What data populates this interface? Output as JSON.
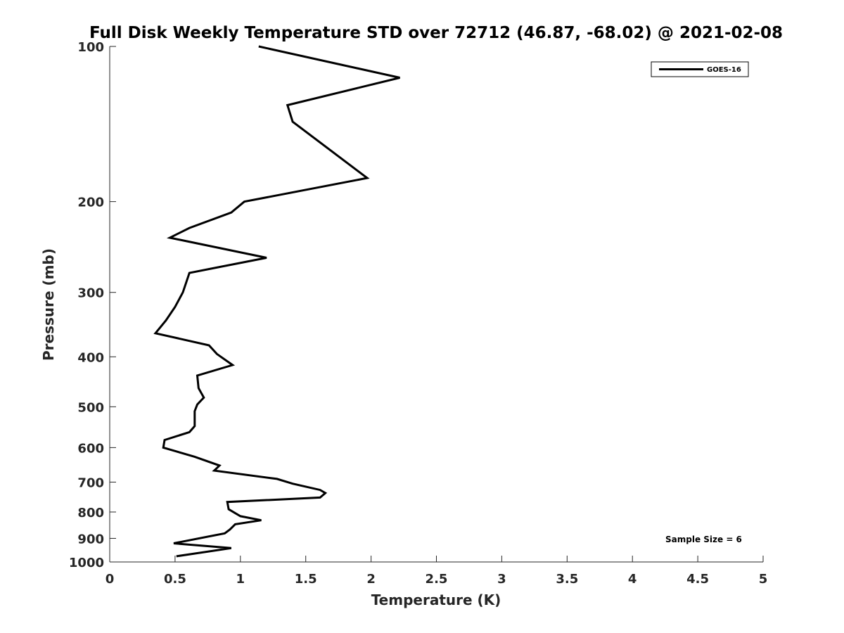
{
  "chart_data": {
    "type": "line",
    "title": "Full Disk Weekly Temperature STD over 72712 (46.87, -68.02) @ 2021-02-08",
    "xlabel": "Temperature (K)",
    "ylabel": "Pressure (mb)",
    "xlim": [
      0,
      5
    ],
    "ylim": [
      100,
      1000
    ],
    "y_scale": "log",
    "y_reversed": true,
    "x_ticks": [
      0,
      0.5,
      1,
      1.5,
      2,
      2.5,
      3,
      3.5,
      4,
      4.5,
      5
    ],
    "x_tick_labels": [
      "0",
      "0.5",
      "1",
      "1.5",
      "2",
      "2.5",
      "3",
      "3.5",
      "4",
      "4.5",
      "5"
    ],
    "y_ticks": [
      100,
      200,
      300,
      400,
      500,
      600,
      700,
      800,
      900,
      1000
    ],
    "y_tick_labels": [
      "100",
      "200",
      "300",
      "400",
      "500",
      "600",
      "700",
      "800",
      "900",
      "1000"
    ],
    "grid": false,
    "legend_position": "top-right",
    "series": [
      {
        "name": "GOES-16",
        "color": "#000000",
        "x": [
          1.14,
          2.22,
          1.36,
          1.4,
          1.97,
          1.03,
          0.93,
          0.61,
          0.46,
          1.2,
          0.61,
          0.56,
          0.5,
          0.43,
          0.35,
          0.76,
          0.82,
          0.94,
          0.67,
          0.68,
          0.72,
          0.67,
          0.65,
          0.65,
          0.65,
          0.61,
          0.42,
          0.41,
          0.65,
          0.84,
          0.8,
          1.28,
          1.4,
          1.61,
          1.65,
          1.61,
          0.9,
          0.91,
          1.0,
          1.16,
          0.96,
          0.92,
          0.88,
          0.49,
          0.93,
          0.51
        ],
        "y": [
          100,
          115,
          130,
          140,
          180,
          200,
          210,
          225,
          235,
          257,
          275,
          300,
          320,
          340,
          360,
          380,
          395,
          415,
          435,
          460,
          480,
          495,
          510,
          530,
          545,
          560,
          580,
          600,
          625,
          650,
          665,
          690,
          705,
          725,
          735,
          750,
          765,
          790,
          815,
          830,
          845,
          865,
          880,
          920,
          940,
          975
        ]
      }
    ],
    "annotation": "Sample Size = 6"
  }
}
